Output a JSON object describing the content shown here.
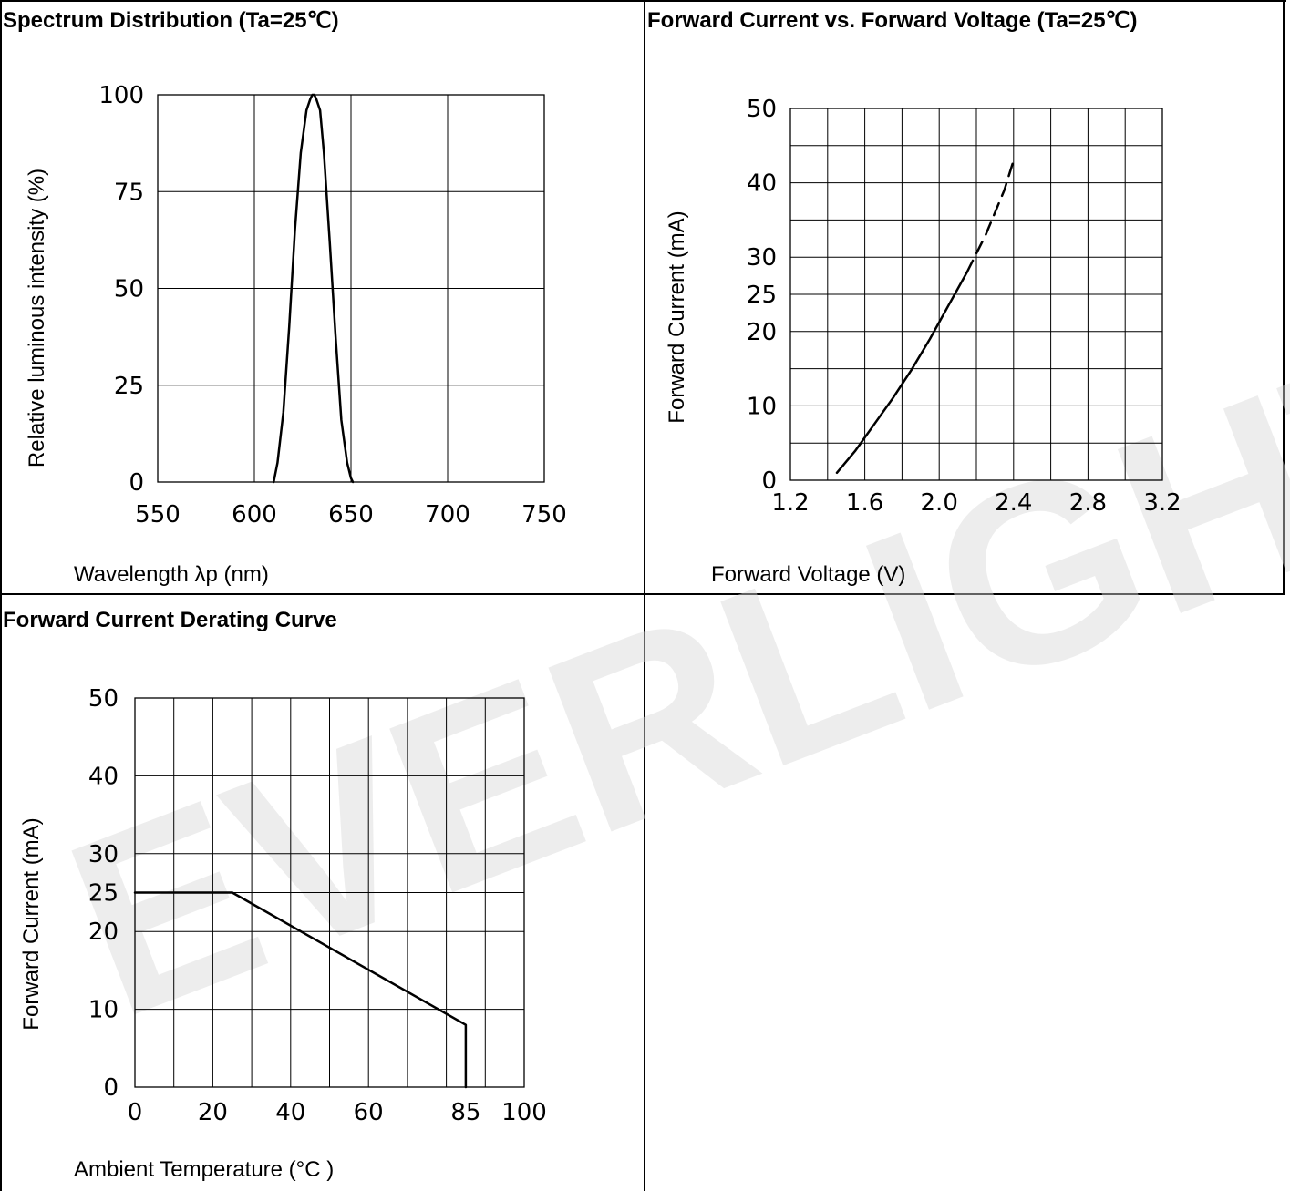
{
  "watermark_text": "EVERLIGHT",
  "panels": {
    "spectrum": {
      "title": "Spectrum Distribution (Ta=25℃)",
      "xlabel": "Wavelength λp (nm)",
      "ylabel": "Relative luminous intensity (%)"
    },
    "iv": {
      "title": "Forward Current vs. Forward Voltage (Ta=25℃)",
      "xlabel": "Forward Voltage (V)",
      "ylabel": "Forward Current (mA)"
    },
    "derating": {
      "title": "Forward Current Derating Curve",
      "xlabel": "Ambient Temperature (°C )",
      "ylabel": "Forward Current (mA)"
    }
  },
  "chart_data": [
    {
      "id": "spectrum",
      "type": "line",
      "title": "Spectrum Distribution (Ta=25℃)",
      "xlabel": "Wavelength λp (nm)",
      "ylabel": "Relative luminous intensity (%)",
      "xlim": [
        550,
        750
      ],
      "ylim": [
        0,
        100
      ],
      "x_ticks": [
        "550",
        "600",
        "650",
        "700",
        "750"
      ],
      "y_ticks": [
        "0",
        "25",
        "50",
        "75",
        "100"
      ],
      "grid": true,
      "series": [
        {
          "style": "solid",
          "x": [
            610,
            612,
            615,
            618,
            621,
            624,
            627,
            629,
            630,
            631,
            632,
            634,
            636,
            639,
            642,
            645,
            648,
            650,
            651
          ],
          "y": [
            0,
            5,
            18,
            40,
            65,
            85,
            96,
            99,
            100,
            100,
            99,
            96,
            85,
            62,
            38,
            16,
            5,
            1,
            0
          ]
        }
      ]
    },
    {
      "id": "iv",
      "type": "line",
      "title": "Forward Current vs. Forward Voltage (Ta=25℃)",
      "xlabel": "Forward Voltage (V)",
      "ylabel": "Forward Current (mA)",
      "xlim": [
        1.2,
        3.2
      ],
      "ylim": [
        0,
        50
      ],
      "x_ticks": [
        "1.2",
        "1.6",
        "2.0",
        "2.4",
        "2.8",
        "3.2"
      ],
      "y_ticks": [
        "0",
        "10",
        "20",
        "25",
        "30",
        "40",
        "50"
      ],
      "grid": true,
      "series": [
        {
          "style": "solid",
          "x": [
            1.45,
            1.55,
            1.65,
            1.75,
            1.85,
            1.95,
            2.05,
            2.15
          ],
          "y": [
            1,
            4,
            7.5,
            11,
            14.8,
            19,
            23.5,
            28
          ]
        },
        {
          "style": "dashed",
          "x": [
            2.15,
            2.25,
            2.35,
            2.4
          ],
          "y": [
            28,
            33,
            39,
            43
          ]
        }
      ]
    },
    {
      "id": "derating",
      "type": "line",
      "title": "Forward Current Derating Curve",
      "xlabel": "Ambient Temperature (°C )",
      "ylabel": "Forward Current (mA)",
      "xlim": [
        0,
        100
      ],
      "ylim": [
        0,
        50
      ],
      "x_ticks": [
        "0",
        "20",
        "40",
        "60",
        "85",
        "100"
      ],
      "y_ticks": [
        "0",
        "10",
        "20",
        "25",
        "30",
        "40",
        "50"
      ],
      "grid": true,
      "series": [
        {
          "style": "solid",
          "x": [
            0,
            25,
            85,
            85
          ],
          "y": [
            25,
            25,
            8,
            0
          ]
        }
      ]
    }
  ]
}
